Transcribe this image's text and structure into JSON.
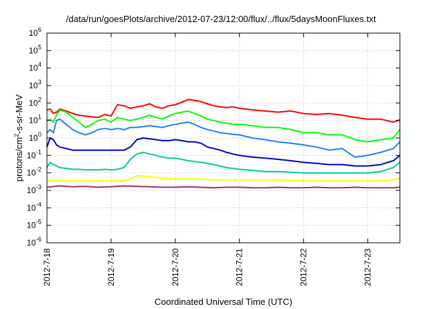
{
  "chart_data": {
    "type": "line",
    "title": "/data/run/goesPlots/archive/2012-07-23/12:00/flux/../flux/5daysMoonFluxes.txt",
    "xlabel": "Coordinated Universal Time (UTC)",
    "ylabel": "protons/cm²-s-sr-MeV",
    "ylabel_parts": {
      "pre": "protons/cm",
      "sup": "2",
      "post": "-s-sr-MeV"
    },
    "yscale": "log",
    "ylim": [
      -6,
      6
    ],
    "xlim": [
      0,
      5.5
    ],
    "grid": true,
    "x_ticks": [
      {
        "x": 0,
        "label": "2012-7-18"
      },
      {
        "x": 1,
        "label": "2012-7-19"
      },
      {
        "x": 2,
        "label": "2012-7-20"
      },
      {
        "x": 3,
        "label": "2012-7-21"
      },
      {
        "x": 4,
        "label": "2012-7-22"
      },
      {
        "x": 5,
        "label": "2012-7-23"
      }
    ],
    "y_ticks": [
      {
        "exp": 6,
        "label": "6"
      },
      {
        "exp": 5,
        "label": "5"
      },
      {
        "exp": 4,
        "label": "4"
      },
      {
        "exp": 3,
        "label": "3"
      },
      {
        "exp": 2,
        "label": "2"
      },
      {
        "exp": 1,
        "label": "1"
      },
      {
        "exp": 0,
        "label": "0"
      },
      {
        "exp": -1,
        "label": "-1"
      },
      {
        "exp": -2,
        "label": "-2"
      },
      {
        "exp": -3,
        "label": "-3"
      },
      {
        "exp": -4,
        "label": "-4"
      },
      {
        "exp": -5,
        "label": "-5"
      },
      {
        "exp": -6,
        "label": "-6"
      }
    ],
    "tick_base": "10",
    "series": [
      {
        "color": "#ff0000",
        "x": [
          0,
          0.05,
          0.1,
          0.15,
          0.2,
          0.3,
          0.4,
          0.5,
          0.6,
          0.7,
          0.8,
          0.9,
          1.0,
          1.1,
          1.2,
          1.3,
          1.4,
          1.5,
          1.6,
          1.7,
          1.8,
          1.9,
          2.0,
          2.1,
          2.2,
          2.3,
          2.4,
          2.5,
          2.6,
          2.7,
          2.8,
          2.9,
          3.0,
          3.2,
          3.4,
          3.6,
          3.8,
          4.0,
          4.2,
          4.4,
          4.6,
          4.8,
          5.0,
          5.2,
          5.4,
          5.5
        ],
        "y": [
          40,
          45,
          25,
          30,
          45,
          35,
          25,
          20,
          18,
          16,
          15,
          22,
          18,
          80,
          70,
          50,
          60,
          70,
          90,
          60,
          50,
          70,
          80,
          110,
          160,
          140,
          120,
          90,
          70,
          60,
          55,
          60,
          50,
          40,
          35,
          30,
          35,
          25,
          22,
          25,
          20,
          15,
          12,
          12,
          8,
          11
        ]
      },
      {
        "color": "#00ff00",
        "x": [
          0,
          0.05,
          0.1,
          0.15,
          0.2,
          0.3,
          0.4,
          0.5,
          0.6,
          0.7,
          0.8,
          0.9,
          1.0,
          1.1,
          1.2,
          1.3,
          1.4,
          1.5,
          1.6,
          1.7,
          1.8,
          1.9,
          2.0,
          2.1,
          2.2,
          2.3,
          2.4,
          2.5,
          2.6,
          2.7,
          2.8,
          2.9,
          3.0,
          3.2,
          3.4,
          3.6,
          3.8,
          4.0,
          4.2,
          4.4,
          4.6,
          4.8,
          5.0,
          5.2,
          5.4,
          5.5
        ],
        "y": [
          10,
          12,
          8,
          20,
          40,
          30,
          15,
          8,
          4,
          6,
          10,
          12,
          8,
          15,
          12,
          10,
          12,
          15,
          20,
          15,
          12,
          18,
          25,
          30,
          35,
          25,
          18,
          12,
          10,
          8,
          7,
          6,
          6,
          5,
          4,
          4,
          3,
          2,
          2,
          1.5,
          1.5,
          0.8,
          0.6,
          0.8,
          1.0,
          3.0
        ]
      },
      {
        "color": "#1e7fff",
        "x": [
          0,
          0.05,
          0.1,
          0.15,
          0.2,
          0.3,
          0.4,
          0.5,
          0.6,
          0.7,
          0.8,
          0.9,
          1.0,
          1.1,
          1.2,
          1.3,
          1.4,
          1.5,
          1.6,
          1.7,
          1.8,
          1.9,
          2.0,
          2.1,
          2.2,
          2.3,
          2.4,
          2.5,
          2.6,
          2.7,
          2.8,
          2.9,
          3.0,
          3.2,
          3.4,
          3.6,
          3.8,
          4.0,
          4.2,
          4.4,
          4.6,
          4.8,
          5.0,
          5.2,
          5.4,
          5.5
        ],
        "y": [
          2,
          3,
          2,
          10,
          12,
          6,
          3,
          2,
          1.5,
          2,
          3,
          3.5,
          3,
          3.5,
          3,
          4,
          4,
          4.5,
          5,
          4.5,
          4,
          5,
          6,
          7,
          8,
          6,
          4,
          3,
          2.5,
          2,
          1.8,
          1.6,
          1.5,
          1,
          0.8,
          0.6,
          0.5,
          0.4,
          0.3,
          0.2,
          0.25,
          0.08,
          0.1,
          0.15,
          0.25,
          0.6
        ]
      },
      {
        "color": "#0000cc",
        "x": [
          0,
          0.05,
          0.1,
          0.15,
          0.2,
          0.3,
          0.4,
          0.5,
          0.6,
          0.7,
          0.8,
          0.9,
          1.0,
          1.1,
          1.2,
          1.3,
          1.4,
          1.5,
          1.6,
          1.7,
          1.8,
          1.9,
          2.0,
          2.1,
          2.2,
          2.3,
          2.4,
          2.5,
          2.6,
          2.7,
          2.8,
          2.9,
          3.0,
          3.2,
          3.4,
          3.6,
          3.8,
          4.0,
          4.2,
          4.4,
          4.6,
          4.8,
          5.0,
          5.2,
          5.4,
          5.5
        ],
        "y": [
          0.3,
          1.0,
          0.8,
          0.4,
          0.3,
          0.25,
          0.2,
          0.2,
          0.2,
          0.2,
          0.2,
          0.2,
          0.2,
          0.2,
          0.2,
          0.3,
          0.8,
          1.0,
          0.9,
          0.8,
          0.7,
          0.7,
          0.8,
          0.7,
          0.6,
          0.6,
          0.5,
          0.3,
          0.25,
          0.2,
          0.15,
          0.12,
          0.1,
          0.08,
          0.07,
          0.06,
          0.05,
          0.04,
          0.035,
          0.03,
          0.03,
          0.025,
          0.025,
          0.03,
          0.05,
          0.1
        ]
      },
      {
        "color": "#00cc99",
        "x": [
          0,
          0.05,
          0.1,
          0.15,
          0.2,
          0.3,
          0.4,
          0.5,
          0.6,
          0.7,
          0.8,
          0.9,
          1.0,
          1.1,
          1.2,
          1.3,
          1.4,
          1.5,
          1.6,
          1.7,
          1.8,
          1.9,
          2.0,
          2.1,
          2.2,
          2.3,
          2.4,
          2.5,
          2.6,
          2.7,
          2.8,
          2.9,
          3.0,
          3.2,
          3.4,
          3.6,
          3.8,
          4.0,
          4.2,
          4.4,
          4.6,
          4.8,
          5.0,
          5.2,
          5.4,
          5.5
        ],
        "y": [
          0.02,
          0.04,
          0.03,
          0.025,
          0.02,
          0.018,
          0.016,
          0.016,
          0.015,
          0.015,
          0.015,
          0.016,
          0.015,
          0.016,
          0.02,
          0.06,
          0.12,
          0.15,
          0.12,
          0.1,
          0.08,
          0.07,
          0.07,
          0.06,
          0.05,
          0.045,
          0.04,
          0.035,
          0.03,
          0.025,
          0.02,
          0.018,
          0.016,
          0.014,
          0.012,
          0.012,
          0.011,
          0.01,
          0.01,
          0.01,
          0.01,
          0.01,
          0.01,
          0.012,
          0.02,
          0.04
        ]
      },
      {
        "color": "#ffff00",
        "x": [
          0,
          0.2,
          0.4,
          0.6,
          0.8,
          1.0,
          1.2,
          1.3,
          1.4,
          1.5,
          1.6,
          1.8,
          2.0,
          2.2,
          2.4,
          2.6,
          2.8,
          3.0,
          3.2,
          3.4,
          3.6,
          3.8,
          4.0,
          4.2,
          4.4,
          4.6,
          4.8,
          5.0,
          5.2,
          5.4,
          5.5
        ],
        "y": [
          0.0035,
          0.0035,
          0.0035,
          0.0035,
          0.0035,
          0.0035,
          0.0035,
          0.0045,
          0.007,
          0.0065,
          0.006,
          0.005,
          0.0045,
          0.0045,
          0.0045,
          0.004,
          0.004,
          0.004,
          0.004,
          0.004,
          0.0038,
          0.0038,
          0.0035,
          0.0035,
          0.0035,
          0.0035,
          0.0035,
          0.0035,
          0.0035,
          0.004,
          0.005
        ]
      },
      {
        "color": "#993366",
        "x": [
          0,
          0.2,
          0.4,
          0.6,
          0.8,
          1.0,
          1.2,
          1.4,
          1.6,
          1.8,
          2.0,
          2.2,
          2.4,
          2.6,
          2.8,
          3.0,
          3.2,
          3.4,
          3.6,
          3.8,
          4.0,
          4.2,
          4.4,
          4.6,
          4.8,
          5.0,
          5.2,
          5.4,
          5.5
        ],
        "y": [
          0.0015,
          0.0018,
          0.0016,
          0.0017,
          0.0015,
          0.0016,
          0.0018,
          0.0017,
          0.0016,
          0.0015,
          0.0015,
          0.0016,
          0.0015,
          0.0014,
          0.0015,
          0.0015,
          0.0014,
          0.0014,
          0.0015,
          0.0014,
          0.0014,
          0.0015,
          0.0014,
          0.0014,
          0.0015,
          0.0014,
          0.0014,
          0.0014,
          0.0015
        ]
      }
    ]
  }
}
